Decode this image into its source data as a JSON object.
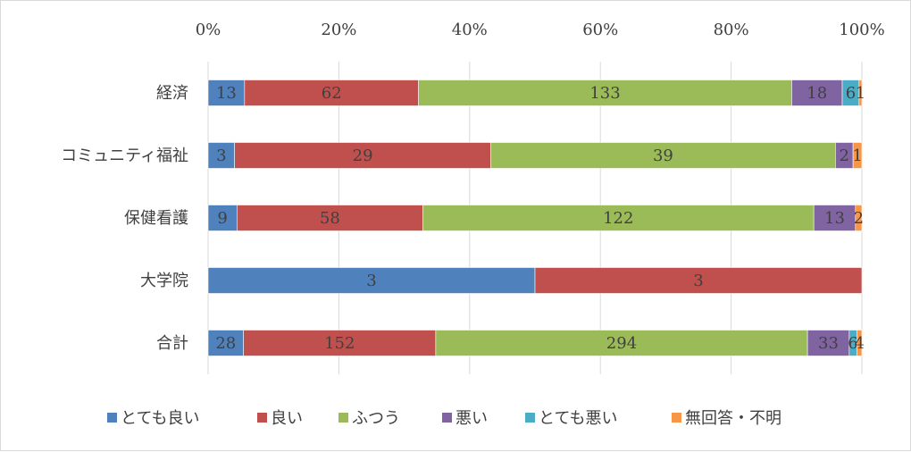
{
  "chart_data": {
    "type": "bar",
    "orientation": "horizontal",
    "stacking": "percent",
    "categories": [
      "経済",
      "コミュニティ福祉",
      "保健看護",
      "大学院",
      "合計"
    ],
    "series": [
      {
        "name": "とても良い",
        "color": "#4F81BD",
        "values": [
          13,
          3,
          9,
          3,
          28
        ]
      },
      {
        "name": "良い",
        "color": "#C0504D",
        "values": [
          62,
          29,
          58,
          3,
          152
        ]
      },
      {
        "name": "ふつう",
        "color": "#9BBB59",
        "values": [
          133,
          39,
          122,
          0,
          294
        ]
      },
      {
        "name": "悪い",
        "color": "#8064A2",
        "values": [
          18,
          2,
          13,
          0,
          33
        ]
      },
      {
        "name": "とても悪い",
        "color": "#4BACC6",
        "values": [
          6,
          0,
          0,
          0,
          6
        ]
      },
      {
        "name": "無回答・不明",
        "color": "#F79646",
        "values": [
          1,
          1,
          2,
          0,
          4
        ]
      }
    ],
    "xticks": [
      "0%",
      "20%",
      "40%",
      "60%",
      "80%",
      "100%"
    ],
    "xlim": [
      0,
      100
    ],
    "grid": true,
    "legend": "bottom",
    "title": "",
    "xlabel": "",
    "ylabel": ""
  }
}
